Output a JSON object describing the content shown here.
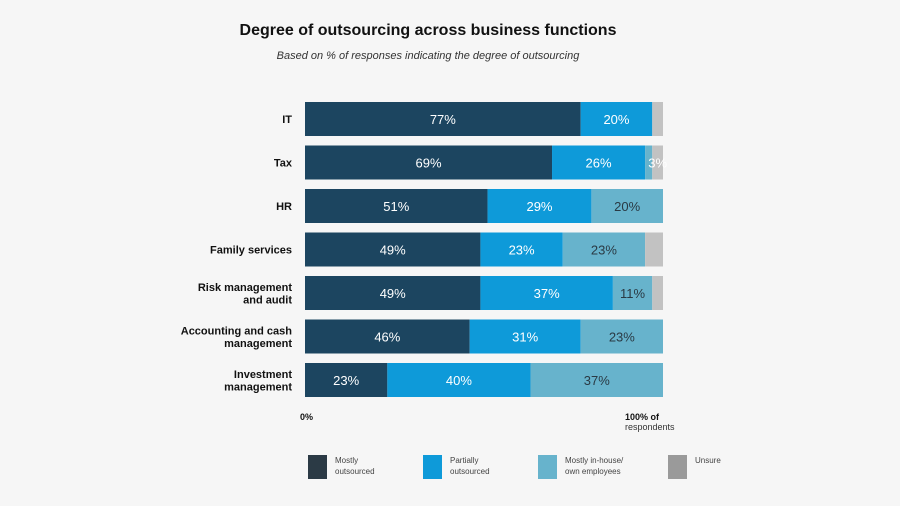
{
  "chart_data": {
    "type": "bar",
    "orientation": "horizontal",
    "stacked": true,
    "title": "Degree of outsourcing across business functions",
    "subtitle": "Based on % of responses indicating the degree of outsourcing",
    "categories": [
      "IT",
      "Tax",
      "HR",
      "Family services",
      "Risk management and audit",
      "Accounting and cash management",
      "Investment management"
    ],
    "category_lines": [
      [
        "IT"
      ],
      [
        "Tax"
      ],
      [
        "HR"
      ],
      [
        "Family services"
      ],
      [
        "Risk management",
        "and audit"
      ],
      [
        "Accounting and cash",
        "management"
      ],
      [
        "Investment",
        "management"
      ]
    ],
    "series": [
      {
        "name": "Mostly outsourced",
        "color": "#1c4560",
        "values": [
          77,
          69,
          51,
          49,
          49,
          46,
          23
        ],
        "labels": [
          "77%",
          "69%",
          "51%",
          "49%",
          "49%",
          "46%",
          "23%"
        ]
      },
      {
        "name": "Partially outsourced",
        "color": "#0e9ad9",
        "values": [
          20,
          26,
          29,
          23,
          37,
          31,
          40
        ],
        "labels": [
          "20%",
          "26%",
          "29%",
          "23%",
          "37%",
          "31%",
          "40%"
        ]
      },
      {
        "name": "Mostly in-house/ own employees",
        "color": "#67b3cc",
        "values": [
          0,
          2,
          20,
          23,
          11,
          23,
          37
        ],
        "labels": [
          "",
          "",
          "20%",
          "23%",
          "11%",
          "23%",
          "37%"
        ]
      },
      {
        "name": "Unsure",
        "color": "#c2c2c2",
        "values": [
          3,
          3,
          0,
          5,
          3,
          0,
          0
        ],
        "labels": [
          "",
          "3%",
          "",
          "",
          "",
          "",
          ""
        ]
      }
    ],
    "xlim": [
      0,
      100
    ],
    "x_axis_min_label": "0%",
    "x_axis_max_label": "100% of",
    "x_axis_max_sub": "respondents",
    "legend_position": "bottom",
    "legend": [
      {
        "lines": [
          "Mostly",
          "outsourced"
        ],
        "color": "#2b3a45"
      },
      {
        "lines": [
          "Partially",
          "outsourced"
        ],
        "color": "#0e9ad9"
      },
      {
        "lines": [
          "Mostly in-house/",
          "own employees"
        ],
        "color": "#67b3cc"
      },
      {
        "lines": [
          "Unsure"
        ],
        "color": "#9a9a9a"
      }
    ]
  }
}
